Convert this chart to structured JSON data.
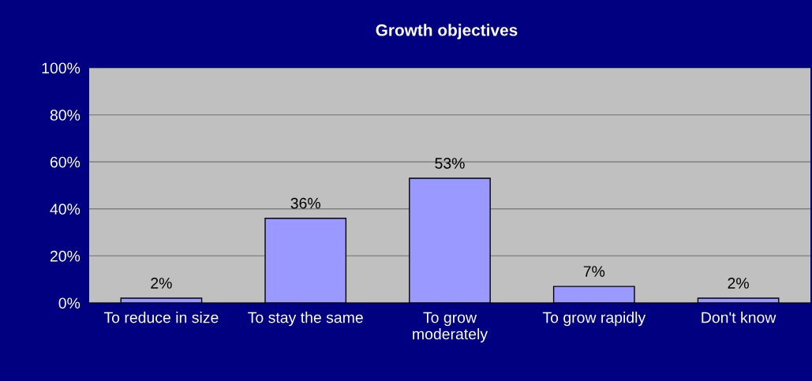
{
  "chart_data": {
    "type": "bar",
    "title": "Growth objectives",
    "categories": [
      "To reduce in size",
      "To stay the same",
      "To grow\nmoderately",
      "To grow rapidly",
      "Don't know"
    ],
    "values": [
      2,
      36,
      53,
      7,
      2
    ],
    "value_labels": [
      "2%",
      "36%",
      "53%",
      "7%",
      "2%"
    ],
    "color": "#9999ff",
    "ylim": [
      0,
      100
    ],
    "yticks": [
      {
        "value": 0,
        "label": "0%"
      },
      {
        "value": 20,
        "label": "20%"
      },
      {
        "value": 40,
        "label": "40%"
      },
      {
        "value": 60,
        "label": "60%"
      },
      {
        "value": 80,
        "label": "80%"
      },
      {
        "value": 100,
        "label": "100%"
      }
    ],
    "grid": "y",
    "legend": false
  }
}
